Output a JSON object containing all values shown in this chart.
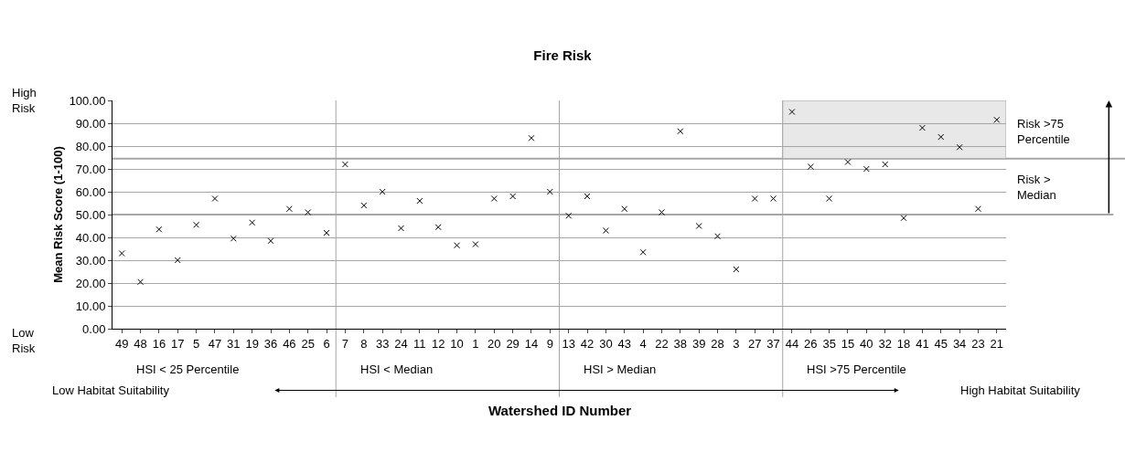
{
  "chart_data": {
    "type": "scatter",
    "title": "Fire Risk",
    "xlabel": "Watershed ID Number",
    "ylabel": "Mean Risk Score (1-100)",
    "categories": [
      "49",
      "48",
      "16",
      "17",
      "5",
      "47",
      "31",
      "19",
      "36",
      "46",
      "25",
      "6",
      "7",
      "8",
      "33",
      "24",
      "11",
      "12",
      "10",
      "1",
      "20",
      "29",
      "14",
      "9",
      "13",
      "42",
      "30",
      "43",
      "4",
      "22",
      "38",
      "39",
      "28",
      "3",
      "27",
      "37",
      "44",
      "26",
      "35",
      "15",
      "40",
      "32",
      "18",
      "41",
      "45",
      "34",
      "23",
      "21"
    ],
    "series": [
      {
        "color": "#000000",
        "values": [
          33,
          20.5,
          43.5,
          30,
          45.5,
          57,
          39.5,
          46.5,
          38.5,
          52.5,
          51,
          42,
          72,
          54,
          60,
          44,
          56,
          44.5,
          36.5,
          37,
          57,
          58,
          83.5,
          60,
          49.5,
          58,
          43,
          52.5,
          33.5,
          51,
          86.5,
          45,
          40.5,
          26,
          57,
          57,
          95,
          71,
          57,
          73,
          70,
          72,
          48.5,
          88,
          84,
          79.5,
          52.5,
          91.5
        ]
      }
    ],
    "marker": "cross",
    "grid": "y",
    "legend": false,
    "ylim": [
      0,
      100
    ],
    "yticks": [
      {
        "value": 0,
        "label": "0.00"
      },
      {
        "value": 10,
        "label": "10.00"
      },
      {
        "value": 20,
        "label": "20.00"
      },
      {
        "value": 30,
        "label": "30.00"
      },
      {
        "value": 40,
        "label": "40.00"
      },
      {
        "value": 50,
        "label": "50.00"
      },
      {
        "value": 60,
        "label": "60.00"
      },
      {
        "value": 70,
        "label": "70.00"
      },
      {
        "value": 80,
        "label": "80.00"
      },
      {
        "value": 90,
        "label": "90.00"
      },
      {
        "value": 100,
        "label": "100.00"
      }
    ],
    "ref_lines": [
      {
        "axis": "y",
        "value": 50,
        "label": "Risk > Median",
        "color": "#a6a6a6"
      },
      {
        "axis": "y",
        "value": 74.5,
        "label": "Risk >75 Percentile",
        "color": "#a6a6a6"
      }
    ],
    "bands": [
      {
        "axis": "y",
        "from": 74.5,
        "to": 100,
        "color": "#e8e8e8"
      }
    ],
    "annotations": [
      "High Risk",
      "Low Risk",
      "Low Habitat Suitability",
      "High Habitat Suitability",
      "HSI < 25 Percentile",
      "HSI < Median",
      "HSI > Median",
      "HSI >75 Percentile"
    ]
  }
}
